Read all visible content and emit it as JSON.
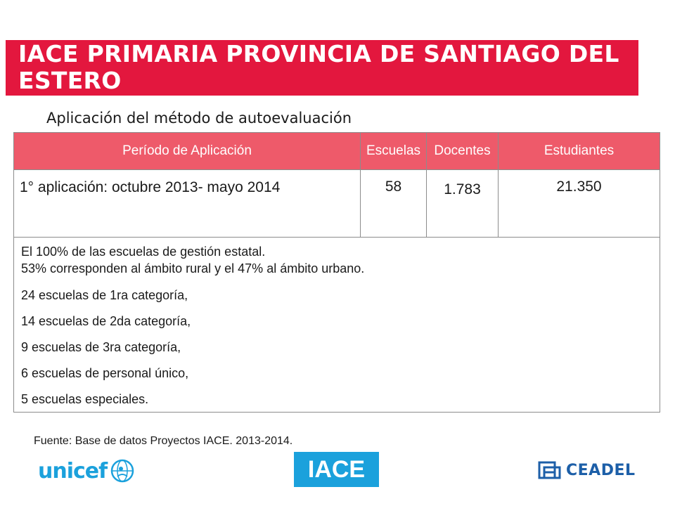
{
  "slide": {
    "title": "IACE PRIMARIA PROVINCIA DE SANTIAGO DEL ESTERO",
    "subtitle": "Aplicación del método de autoevaluación"
  },
  "table": {
    "headers": [
      "Período de Aplicación",
      "Escuelas",
      "Docentes",
      "Estudiantes"
    ],
    "row": {
      "period": "1° aplicación: octubre 2013- mayo 2014",
      "escuelas": "58",
      "docentes": "1.783",
      "estudiantes": "21.350"
    },
    "details": [
      "El 100% de las escuelas de gestión estatal.",
      "53% corresponden al ámbito rural y el 47% al ámbito urbano.",
      "24 escuelas de 1ra categoría,",
      "14 escuelas de 2da categoría,",
      "9 escuelas de 3ra categoría,",
      "6 escuelas de personal único,",
      "5 escuelas especiales."
    ]
  },
  "source": "Fuente: Base de datos Proyectos IACE. 2013-2014.",
  "logos": {
    "unicef": "unicef",
    "iace": "IACE",
    "ceadel": "CEADEL"
  },
  "colors": {
    "title_bar": "#e3173e",
    "table_header": "#ee5a6a",
    "unicef_blue": "#1ba1dc",
    "ceadel_blue": "#1d5fa8"
  }
}
